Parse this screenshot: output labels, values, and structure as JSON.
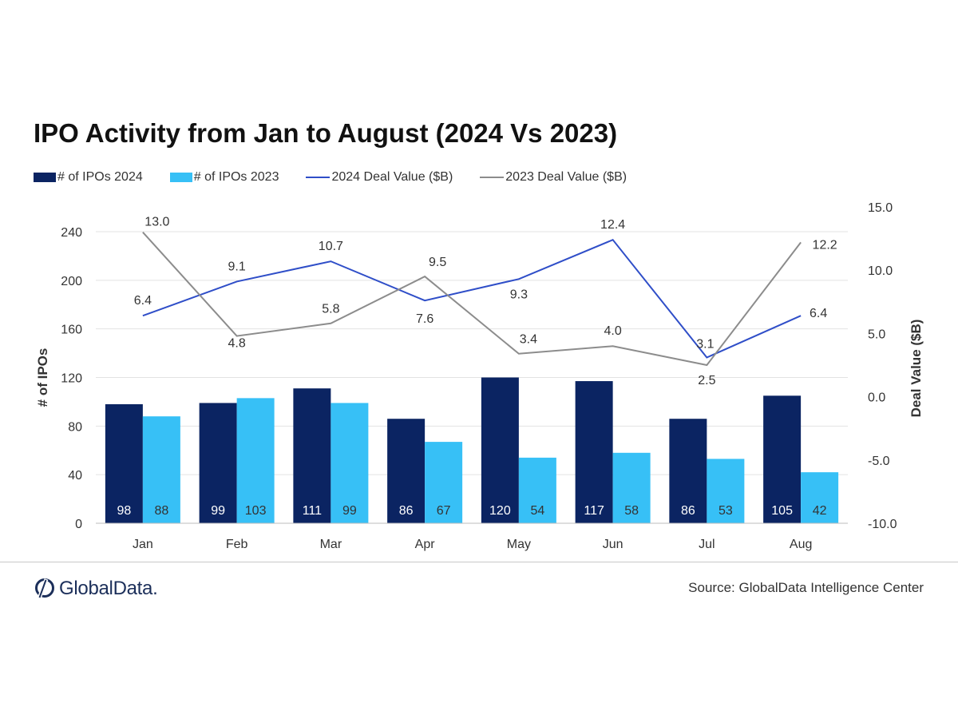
{
  "title": "IPO Activity from Jan to August (2024 Vs 2023)",
  "legend": [
    {
      "label": "# of IPOs 2024",
      "kind": "box",
      "color": "#0b2462"
    },
    {
      "label": "# of IPOs 2023",
      "kind": "box",
      "color": "#37c0f6"
    },
    {
      "label": "2024 Deal Value ($B)",
      "kind": "line",
      "color": "#2f4ec8"
    },
    {
      "label": "2023 Deal Value ($B)",
      "kind": "line",
      "color": "#8c8c8c"
    }
  ],
  "chart_data": {
    "type": "bar",
    "categories": [
      "Jan",
      "Feb",
      "Mar",
      "Apr",
      "May",
      "Jun",
      "Jul",
      "Aug"
    ],
    "series": [
      {
        "name": "# of IPOs 2024",
        "type": "bar",
        "axis": "left",
        "color": "#0b2462",
        "values": [
          98,
          99,
          111,
          86,
          120,
          117,
          86,
          105
        ]
      },
      {
        "name": "# of IPOs 2023",
        "type": "bar",
        "axis": "left",
        "color": "#37c0f6",
        "values": [
          88,
          103,
          99,
          67,
          54,
          58,
          53,
          42
        ]
      },
      {
        "name": "2024 Deal Value ($B)",
        "type": "line",
        "axis": "right",
        "color": "#2f4ec8",
        "values": [
          6.4,
          9.1,
          10.7,
          7.6,
          9.3,
          12.4,
          3.1,
          6.4
        ]
      },
      {
        "name": "2023 Deal Value ($B)",
        "type": "line",
        "axis": "right",
        "color": "#8c8c8c",
        "values": [
          13.0,
          4.8,
          5.8,
          9.5,
          3.4,
          4.0,
          2.5,
          12.2
        ]
      }
    ],
    "ylabel": "# of IPOs",
    "ylim": [
      0,
      240
    ],
    "yticks": [
      "0",
      "40",
      "80",
      "120",
      "160",
      "200",
      "240"
    ],
    "y2label": "Deal Value ($B)",
    "y2lim": [
      -10,
      15
    ],
    "y2ticks": [
      "-10.0",
      "-5.0",
      "0.0",
      "5.0",
      "10.0",
      "15.0"
    ],
    "grid": true,
    "legend_position": "top"
  },
  "footer": {
    "logo_text": "GlobalData.",
    "source": "Source: GlobalData Intelligence Center"
  }
}
